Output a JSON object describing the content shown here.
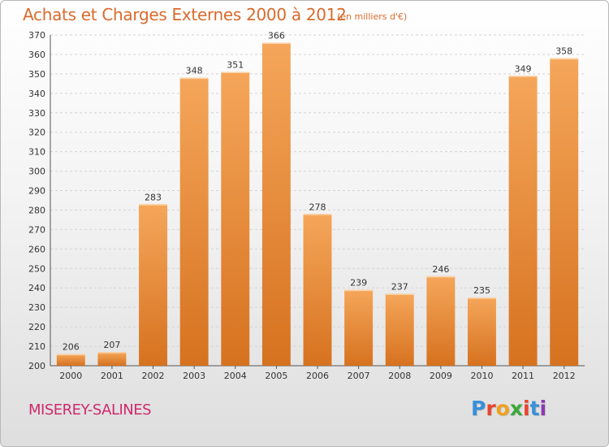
{
  "header": {
    "title": "Achats et Charges Externes 2000 à 2012",
    "subtitle": "(en milliers d'€)"
  },
  "footer": {
    "place": "MISEREY-SALINES",
    "logo": "Proxiti"
  },
  "colors": {
    "bar_light": "#f5a65a",
    "bar_dark": "#d6721f",
    "title": "#d96a2c",
    "place": "#cf2a6d",
    "logo_letters": [
      "#3a8fd8",
      "#e8442e",
      "#f0a020",
      "#3aa83a",
      "#e8442e",
      "#3a8fd8",
      "#8a3ab0"
    ]
  },
  "chart_data": {
    "type": "bar",
    "title": "Achats et Charges Externes 2000 à 2012",
    "subtitle": "(en milliers d'€)",
    "categories": [
      "2000",
      "2001",
      "2002",
      "2003",
      "2004",
      "2005",
      "2006",
      "2007",
      "2008",
      "2009",
      "2010",
      "2011",
      "2012"
    ],
    "values": [
      206,
      207,
      283,
      348,
      351,
      366,
      278,
      239,
      237,
      246,
      235,
      349,
      358
    ],
    "ylim": [
      200,
      370
    ],
    "yticks": [
      "200",
      "210",
      "220",
      "230",
      "240",
      "250",
      "260",
      "270",
      "280",
      "290",
      "300",
      "310",
      "320",
      "330",
      "340",
      "350",
      "360",
      "370"
    ],
    "grid": true,
    "xlabel": "",
    "ylabel": ""
  }
}
